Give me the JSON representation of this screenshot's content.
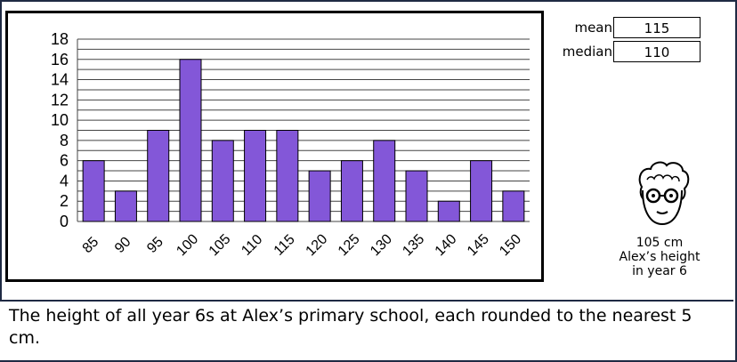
{
  "chart_data": {
    "type": "bar",
    "categories": [
      "85",
      "90",
      "95",
      "100",
      "105",
      "110",
      "115",
      "120",
      "125",
      "130",
      "135",
      "140",
      "145",
      "150"
    ],
    "values": [
      6,
      3,
      9,
      16,
      8,
      9,
      9,
      5,
      6,
      8,
      5,
      2,
      6,
      3
    ],
    "yticks": [
      0,
      2,
      4,
      6,
      8,
      10,
      12,
      14,
      16,
      18
    ],
    "ylim": [
      0,
      18
    ],
    "grid": true,
    "title": "",
    "xlabel": "",
    "ylabel": ""
  },
  "stats": {
    "mean_label": "mean",
    "mean_value": "115",
    "median_label": "median",
    "median_value": "110"
  },
  "alex": {
    "height_value": "105 cm",
    "caption_line1": "Alex’s height",
    "caption_line2": "in year 6"
  },
  "statement": "The height of all year 6s at Alex’s primary school, each rounded to the nearest 5 cm.",
  "colors": {
    "bar": "#8357d8",
    "frame": "#1f2a44"
  }
}
